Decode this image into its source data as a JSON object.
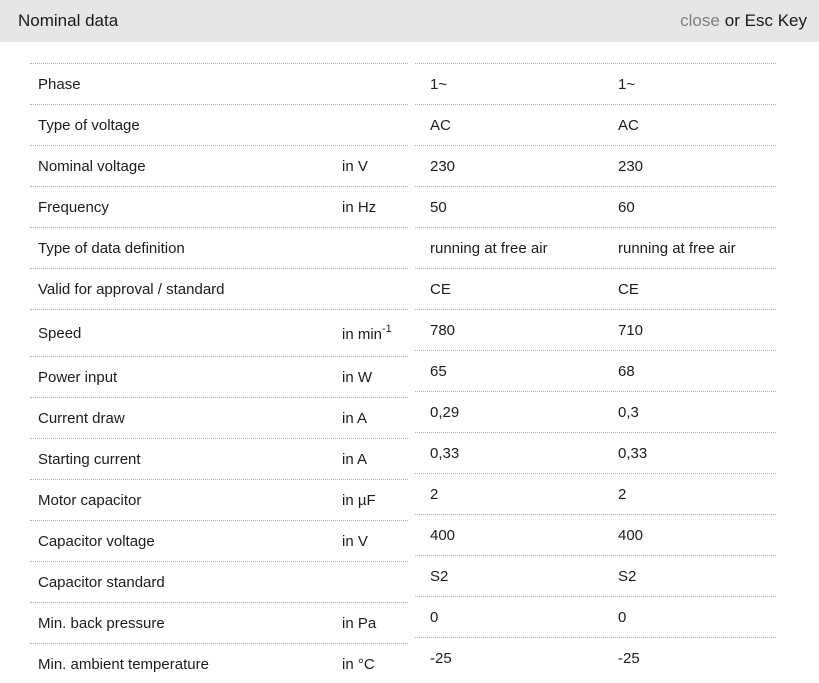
{
  "header": {
    "title": "Nominal data",
    "close_label": "close",
    "close_suffix": "or Esc Key"
  },
  "colors": {
    "header_bg": "#e6e6e6",
    "text": "#1c1c1c",
    "muted": "#7f7f7f",
    "separator": "#b3b3b3"
  },
  "table": {
    "rows": [
      {
        "label": "Phase",
        "unit": "",
        "unit_sup": "",
        "value1": "1~",
        "value2": "1~"
      },
      {
        "label": "Type of voltage",
        "unit": "",
        "unit_sup": "",
        "value1": "AC",
        "value2": "AC"
      },
      {
        "label": "Nominal voltage",
        "unit": "in V",
        "unit_sup": "",
        "value1": "230",
        "value2": "230"
      },
      {
        "label": "Frequency",
        "unit": "in Hz",
        "unit_sup": "",
        "value1": "50",
        "value2": "60"
      },
      {
        "label": "Type of data definition",
        "unit": "",
        "unit_sup": "",
        "value1": "running at free air",
        "value2": "running at free air"
      },
      {
        "label": "Valid for approval / standard",
        "unit": "",
        "unit_sup": "",
        "value1": "CE",
        "value2": "CE"
      },
      {
        "label": "Speed",
        "unit": "in min",
        "unit_sup": "-1",
        "value1": "780",
        "value2": "710",
        "tall": true
      },
      {
        "label": "Power input",
        "unit": "in W",
        "unit_sup": "",
        "value1": "65",
        "value2": "68"
      },
      {
        "label": "Current draw",
        "unit": "in A",
        "unit_sup": "",
        "value1": "0,29",
        "value2": "0,3"
      },
      {
        "label": "Starting current",
        "unit": "in A",
        "unit_sup": "",
        "value1": "0,33",
        "value2": "0,33"
      },
      {
        "label": "Motor capacitor",
        "unit": "in µF",
        "unit_sup": "",
        "value1": "2",
        "value2": "2"
      },
      {
        "label": "Capacitor voltage",
        "unit": "in V",
        "unit_sup": "",
        "value1": "400",
        "value2": "400"
      },
      {
        "label": "Capacitor standard",
        "unit": "",
        "unit_sup": "",
        "value1": "S2",
        "value2": "S2"
      },
      {
        "label": "Min. back pressure",
        "unit": "in Pa",
        "unit_sup": "",
        "value1": "0",
        "value2": "0"
      },
      {
        "label": "Min. ambient temperature",
        "unit": "in °C",
        "unit_sup": "",
        "value1": "-25",
        "value2": "-25"
      }
    ]
  }
}
